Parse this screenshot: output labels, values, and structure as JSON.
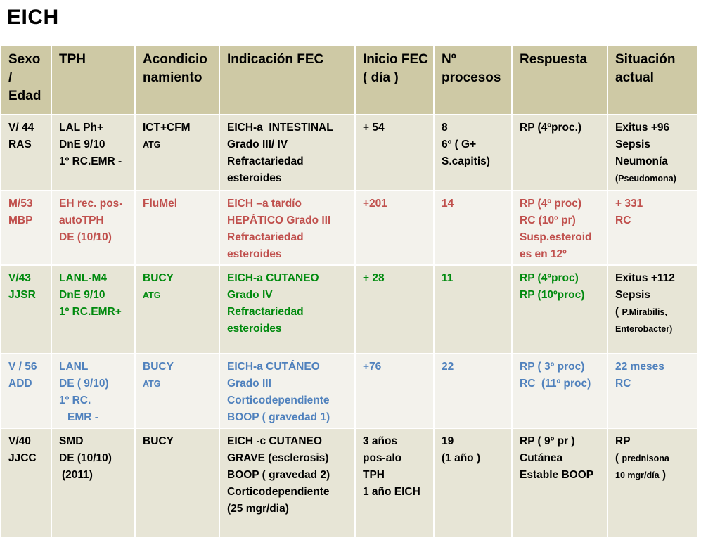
{
  "title": "EICH",
  "colors": {
    "header_bg": "#cec9a5",
    "row_dark": "#e7e5d6",
    "row_light": "#f3f2ec",
    "red": "#c0504d",
    "green": "#008a0e",
    "blue": "#4f81bd"
  },
  "headers": [
    [
      "Sexo",
      "/",
      "Edad"
    ],
    [
      "TPH"
    ],
    [
      "Acondicio",
      "namiento"
    ],
    [
      "Indicación FEC"
    ],
    [
      "Inicio FEC",
      "( día )"
    ],
    [
      "Nº",
      "procesos"
    ],
    [
      "Respuesta"
    ],
    [
      "Situación",
      "actual"
    ]
  ],
  "rows": [
    {
      "color": "black",
      "cells": [
        [
          "V/ 44",
          "RAS"
        ],
        [
          "LAL Ph+",
          "DnE 9/10",
          "1º RC.EMR -"
        ],
        [
          "ICT+CFM",
          "ATG"
        ],
        [
          "EICH-a  INTESTINAL",
          "Grado III/ IV",
          "Refractariedad",
          "esteroides"
        ],
        [
          "+ 54"
        ],
        [
          "8",
          "6º ( G+",
          "S.capitis)"
        ],
        [
          "RP (4ºproc.)"
        ],
        [
          "Exitus +96",
          "Sepsis",
          "Neumonía",
          "(Pseudomona)"
        ]
      ]
    },
    {
      "color": "red",
      "cells": [
        [
          "M/53",
          "MBP"
        ],
        [
          "EH rec. pos-",
          "autoTPH",
          "DE (10/10)"
        ],
        [
          "FluMel"
        ],
        [
          "EICH –a tardío",
          "HEPÁTICO Grado III",
          "Refractariedad",
          "esteroides"
        ],
        [
          "+201"
        ],
        [
          "14"
        ],
        [
          "RP (4º proc)",
          "RC (10º pr)",
          "Susp.esteroid",
          "es en 12º"
        ],
        [
          "+ 331",
          "RC"
        ]
      ]
    },
    {
      "color": "green",
      "cells": [
        [
          "V/43",
          "JJSR"
        ],
        [
          "LANL-M4",
          "DnE 9/10",
          "1º RC.EMR+"
        ],
        [
          "BUCY",
          "ATG"
        ],
        [
          "EICH-a CUTANEO",
          "Grado IV",
          "Refractariedad",
          "esteroides"
        ],
        [
          "+ 28"
        ],
        [
          "11"
        ],
        [
          "RP (4ºproc)",
          "RP (10ºproc)"
        ],
        [
          "Exitus +112",
          "Sepsis",
          "( ",
          "P.Mirabilis,",
          "Enterobacter)"
        ]
      ]
    },
    {
      "color": "blue",
      "cells": [
        [
          "V / 56",
          "ADD"
        ],
        [
          "LANL",
          "DE ( 9/10)",
          "1º RC.",
          "EMR -"
        ],
        [
          "BUCY",
          "ATG"
        ],
        [
          "EICH-a CUTÁNEO",
          "Grado III",
          "Corticodependiente",
          "BOOP ( gravedad 1)"
        ],
        [
          "+76"
        ],
        [
          "22"
        ],
        [
          "RP ( 3º proc)",
          "RC  (11º proc)"
        ],
        [
          "22 meses",
          "RC"
        ]
      ]
    },
    {
      "color": "black",
      "cells": [
        [
          "V/40",
          "JJCC"
        ],
        [
          "SMD",
          "DE (10/10)",
          "(2011)"
        ],
        [
          "BUCY"
        ],
        [
          "EICH -c CUTANEO",
          "GRAVE (esclerosis)",
          "BOOP ( gravedad 2)",
          "Corticodependiente",
          "(25 mgr/dia)"
        ],
        [
          "3 años",
          "pos-alo",
          "TPH",
          "1 año EICH"
        ],
        [
          "19",
          "(1 año )"
        ],
        [
          "RP ( 9º pr )",
          "Cutánea",
          "Estable BOOP"
        ],
        [
          "RP",
          "( ",
          "prednisona",
          "10 mgr/día",
          " )"
        ]
      ]
    }
  ]
}
